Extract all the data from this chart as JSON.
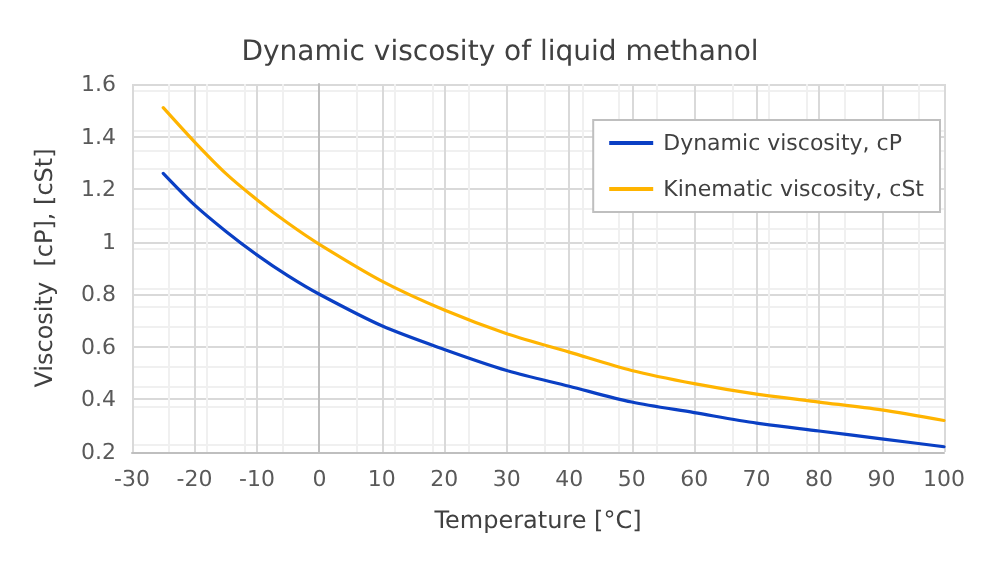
{
  "chart_data": {
    "type": "line",
    "title": "Dynamic viscosity of liquid methanol",
    "xlabel": "Temperature [°C]",
    "ylabel": "Viscosity  [cP], [cSt]",
    "xlim": [
      -30,
      100
    ],
    "xticks": [
      -30,
      -20,
      -10,
      0,
      10,
      20,
      30,
      40,
      50,
      60,
      70,
      80,
      90,
      100
    ],
    "ylim": [
      0.2,
      1.6
    ],
    "yticks": [
      0.2,
      0.4,
      0.6,
      0.8,
      1,
      1.2,
      1.4,
      1.6
    ],
    "grid": true,
    "legend": "top right",
    "marker": "none",
    "line_style": "solid",
    "x": [
      -25,
      -20,
      -15,
      -10,
      -5,
      0,
      10,
      20,
      30,
      40,
      50,
      60,
      70,
      80,
      90,
      100
    ],
    "series": [
      {
        "name": "Dynamic viscosity, cP",
        "color": "#0a3fc4",
        "values": [
          1.26,
          1.14,
          1.04,
          0.95,
          0.87,
          0.8,
          0.68,
          0.59,
          0.51,
          0.45,
          0.39,
          0.35,
          0.31,
          0.28,
          0.25,
          0.22
        ]
      },
      {
        "name": "Kinematic viscosity, cSt",
        "color": "#ffb400",
        "values": [
          1.51,
          1.38,
          1.26,
          1.16,
          1.07,
          0.99,
          0.85,
          0.74,
          0.65,
          0.58,
          0.51,
          0.46,
          0.42,
          0.39,
          0.36,
          0.32
        ]
      }
    ]
  }
}
